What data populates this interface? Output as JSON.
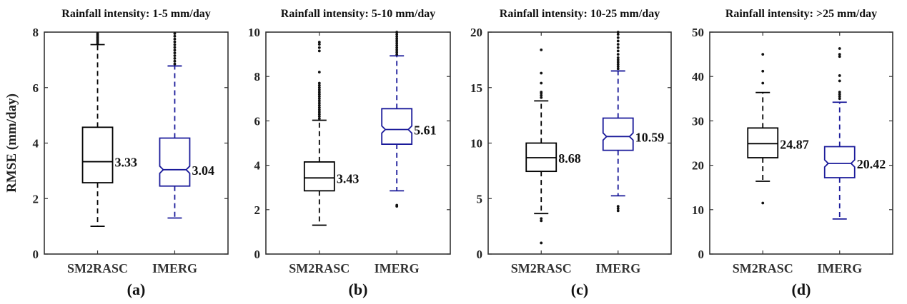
{
  "chart_data": [
    {
      "type": "boxplot",
      "panel_label": "(a)",
      "title": "Rainfall intensity: 1-5 mm/day",
      "xlabel": "",
      "ylabel": "RMSE (mm/day)",
      "ylim": [
        0,
        8
      ],
      "yticks": [
        0,
        2,
        4,
        6,
        8
      ],
      "categories": [
        "SM2RASC",
        "IMERG"
      ],
      "series": [
        {
          "name": "SM2RASC",
          "color": "#000000",
          "notch": false,
          "q1": 2.57,
          "median": 3.33,
          "q3": 4.57,
          "whisker_low": 1.0,
          "whisker_high": 7.55,
          "outliers": [
            7.6,
            7.65,
            7.7,
            7.75,
            7.8,
            7.85,
            7.9,
            7.95
          ],
          "median_label": "3.33"
        },
        {
          "name": "IMERG",
          "color": "#1a1a9a",
          "notch": true,
          "q1": 2.45,
          "median": 3.04,
          "q3": 4.18,
          "whisker_low": 1.3,
          "whisker_high": 6.78,
          "outliers": [
            6.85,
            6.95,
            7.05,
            7.15,
            7.25,
            7.35,
            7.45,
            7.55,
            7.65,
            7.75,
            7.85,
            7.95
          ],
          "median_label": "3.04"
        }
      ]
    },
    {
      "type": "boxplot",
      "panel_label": "(b)",
      "title": "Rainfall intensity: 5-10 mm/day",
      "xlabel": "",
      "ylabel": "",
      "ylim": [
        0,
        10
      ],
      "yticks": [
        0,
        2,
        4,
        6,
        8,
        10
      ],
      "categories": [
        "SM2RASC",
        "IMERG"
      ],
      "series": [
        {
          "name": "SM2RASC",
          "color": "#000000",
          "notch": false,
          "q1": 2.85,
          "median": 3.43,
          "q3": 4.15,
          "whisker_low": 1.3,
          "whisker_high": 6.03,
          "outliers": [
            6.1,
            6.2,
            6.3,
            6.4,
            6.5,
            6.6,
            6.7,
            6.8,
            6.9,
            7.0,
            7.1,
            7.2,
            7.3,
            7.4,
            7.5,
            7.6,
            7.7,
            8.2,
            9.15,
            9.3,
            9.45,
            9.55
          ],
          "median_label": "3.43"
        },
        {
          "name": "IMERG",
          "color": "#1a1a9a",
          "notch": true,
          "q1": 4.95,
          "median": 5.61,
          "q3": 6.55,
          "whisker_low": 2.85,
          "whisker_high": 8.93,
          "outliers": [
            2.15,
            2.2,
            9.0,
            9.1,
            9.2,
            9.3,
            9.4,
            9.5,
            9.6,
            9.7,
            9.8,
            9.9,
            10.0
          ],
          "median_label": "5.61"
        }
      ]
    },
    {
      "type": "boxplot",
      "panel_label": "(c)",
      "title": "Rainfall intensity: 10-25 mm/day",
      "xlabel": "",
      "ylabel": "",
      "ylim": [
        0,
        20
      ],
      "yticks": [
        0,
        5,
        10,
        15,
        20
      ],
      "categories": [
        "SM2RASC",
        "IMERG"
      ],
      "series": [
        {
          "name": "SM2RASC",
          "color": "#000000",
          "notch": false,
          "q1": 7.45,
          "median": 8.68,
          "q3": 10.0,
          "whisker_low": 3.65,
          "whisker_high": 13.8,
          "outliers": [
            1.0,
            3.0,
            3.2,
            14.1,
            14.3,
            14.5,
            14.6,
            15.4,
            16.3,
            18.4
          ],
          "median_label": "8.68"
        },
        {
          "name": "IMERG",
          "color": "#1a1a9a",
          "notch": true,
          "q1": 9.35,
          "median": 10.59,
          "q3": 12.25,
          "whisker_low": 5.25,
          "whisker_high": 16.5,
          "outliers": [
            3.9,
            4.1,
            4.3,
            16.7,
            16.9,
            17.1,
            17.3,
            17.5,
            17.7,
            18.0,
            18.3,
            18.6,
            18.9,
            19.2,
            19.5,
            19.8,
            20.0
          ],
          "median_label": "10.59"
        }
      ]
    },
    {
      "type": "boxplot",
      "panel_label": "(d)",
      "title": "Rainfall intensity: >25 mm/day",
      "xlabel": "",
      "ylabel": "",
      "ylim": [
        0,
        50
      ],
      "yticks": [
        0,
        10,
        20,
        30,
        40,
        50
      ],
      "categories": [
        "SM2RASC",
        "IMERG"
      ],
      "series": [
        {
          "name": "SM2RASC",
          "color": "#000000",
          "notch": false,
          "q1": 21.7,
          "median": 24.87,
          "q3": 28.4,
          "whisker_low": 16.4,
          "whisker_high": 36.4,
          "outliers": [
            11.5,
            38.5,
            41.2,
            45.0
          ],
          "median_label": "24.87"
        },
        {
          "name": "IMERG",
          "color": "#1a1a9a",
          "notch": true,
          "q1": 17.2,
          "median": 20.42,
          "q3": 24.2,
          "whisker_low": 7.9,
          "whisker_high": 34.2,
          "outliers": [
            35.0,
            35.5,
            36.0,
            36.5,
            39.0,
            40.2,
            44.5,
            45.0,
            46.3
          ],
          "median_label": "20.42"
        }
      ]
    }
  ]
}
